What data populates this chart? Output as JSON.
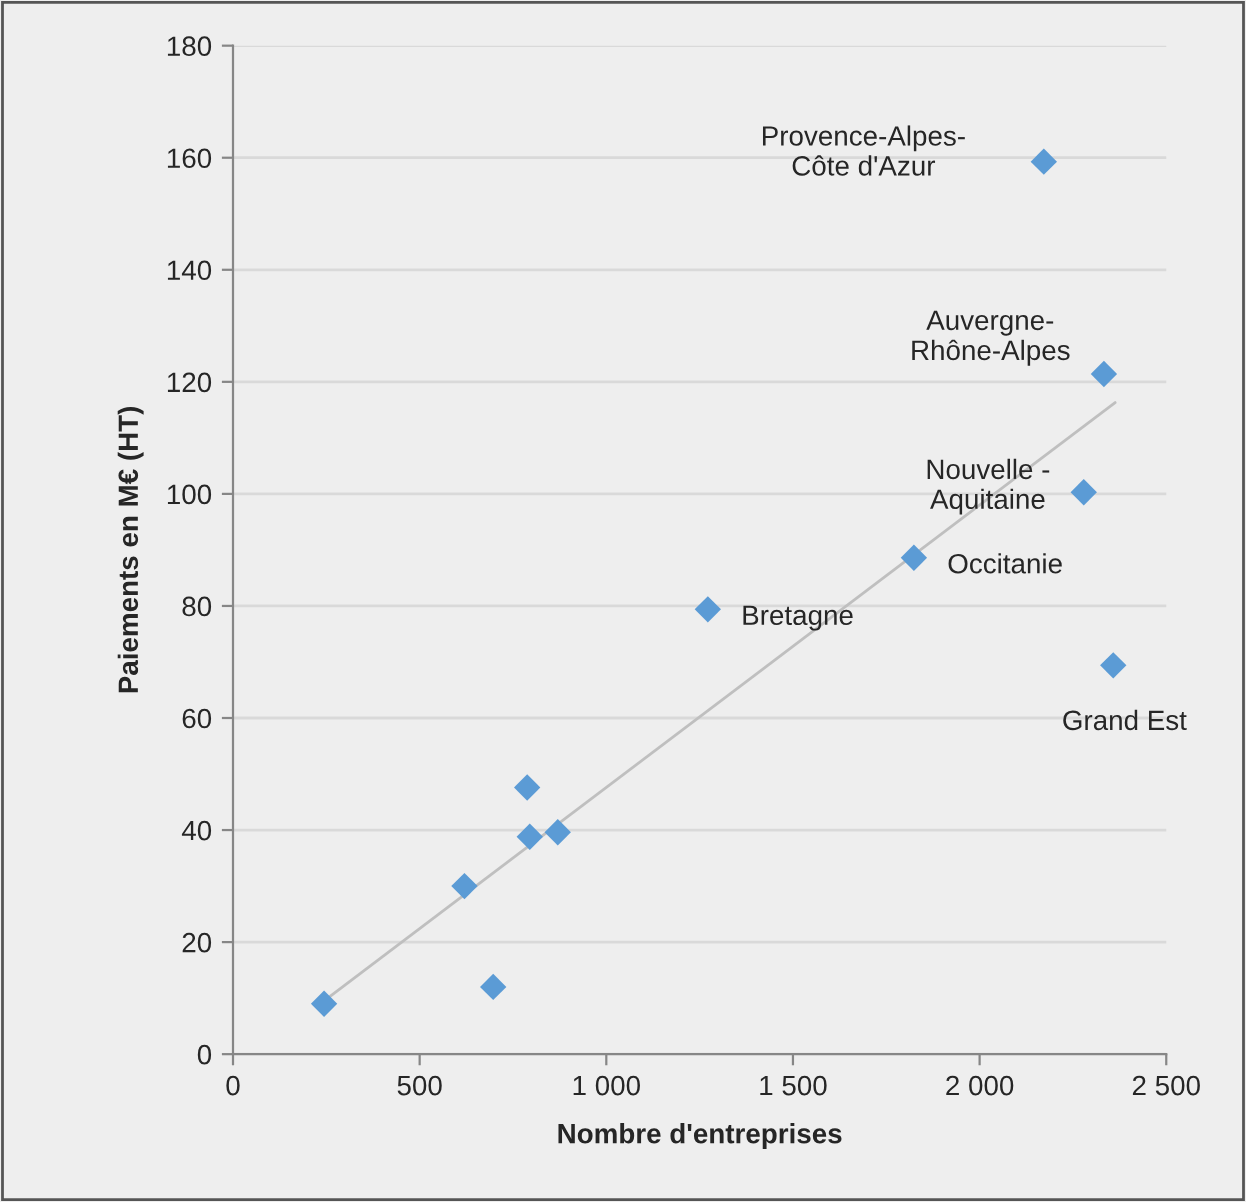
{
  "chart_data": {
    "type": "scatter",
    "xlabel": "Nombre d'entreprises",
    "ylabel": "Paiements en M€ (HT)",
    "xlim": [
      0,
      2500
    ],
    "xticks": [
      0,
      500,
      {
        "value": 1000,
        "label": "1 000"
      },
      {
        "value": 1500,
        "label": "1 500"
      },
      {
        "value": 2000,
        "label": "2 000"
      },
      {
        "value": 2500,
        "label": "2 500"
      }
    ],
    "ylim": [
      0,
      180
    ],
    "yticks": [
      0,
      20,
      40,
      60,
      80,
      100,
      120,
      140,
      160,
      180
    ],
    "grid": "y",
    "marker": "diamond",
    "series": [
      {
        "color": "#5b9bd5",
        "x": [
          244,
          620,
          697,
          788,
          795,
          870,
          1272,
          1824,
          2172,
          2333,
          2279,
          2358
        ],
        "values": [
          9,
          30,
          12,
          47.6,
          38.8,
          39.6,
          79.4,
          88.6,
          159.3,
          121.4,
          100.3,
          69.4
        ]
      },
      {
        "type": "line",
        "color": "#bfbfbf",
        "x": [
          244,
          2363
        ],
        "values": [
          9.5,
          116.3
        ],
        "marker": "none"
      }
    ],
    "annotations": [
      {
        "text": "Bretagne",
        "x": 1272,
        "y": 79.4
      },
      {
        "text": "Occitanie",
        "x": 1824,
        "y": 88.6
      },
      {
        "text": "Provence-Alpes-\nCôte d'Azur",
        "x": 2172,
        "y": 159.3
      },
      {
        "text": "Auvergne-\nRhône-Alpes",
        "x": 2333,
        "y": 121.4
      },
      {
        "text": "Nouvelle -\nAquitaine",
        "x": 2279,
        "y": 100.3
      },
      {
        "text": "Grand Est",
        "x": 2358,
        "y": 69.4
      }
    ]
  }
}
